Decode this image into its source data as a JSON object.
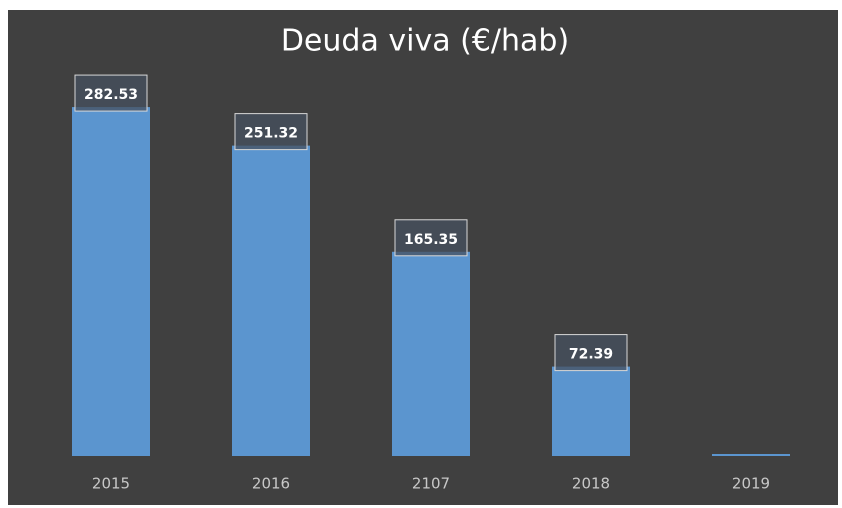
{
  "chart_data": {
    "type": "bar",
    "title": "Deuda viva (€/hab)",
    "categories": [
      "2015",
      "2016",
      "2107",
      "2018",
      "2019"
    ],
    "values": [
      282.53,
      251.32,
      165.35,
      72.39,
      0
    ],
    "value_labels": [
      "282.53",
      "251.32",
      "165.35",
      "72.39",
      null
    ],
    "color": "#5b95cf",
    "ylim": [
      0,
      300
    ]
  }
}
